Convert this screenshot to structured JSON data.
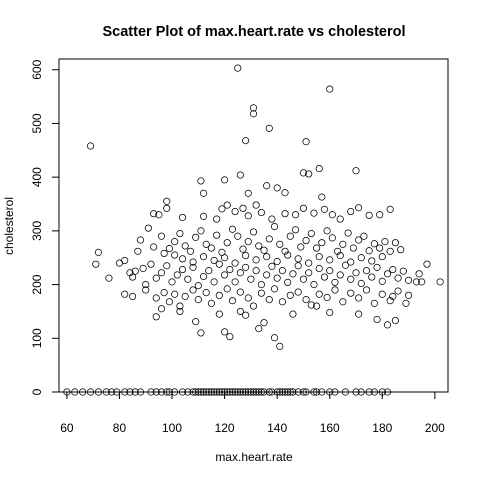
{
  "chart_data": {
    "type": "scatter",
    "title": "Scatter Plot of max.heart.rate vs cholesterol",
    "xlabel": "max.heart.rate",
    "ylabel": "cholesterol",
    "xlim": [
      57,
      205
    ],
    "ylim": [
      0,
      620
    ],
    "x_ticks": [
      60,
      80,
      100,
      120,
      140,
      160,
      180,
      200
    ],
    "y_ticks": [
      0,
      100,
      200,
      300,
      400,
      500,
      600
    ],
    "grid": false,
    "legend": "none",
    "marker": "open-circle",
    "point_color": "#000000",
    "points": [
      [
        69,
        458
      ],
      [
        125,
        603
      ],
      [
        131,
        529
      ],
      [
        131,
        518
      ],
      [
        128,
        468
      ],
      [
        137,
        491
      ],
      [
        160,
        564
      ],
      [
        151,
        466
      ],
      [
        120,
        395
      ],
      [
        111,
        393
      ],
      [
        170,
        412
      ],
      [
        126,
        404
      ],
      [
        152,
        406
      ],
      [
        150,
        408
      ],
      [
        156,
        416
      ],
      [
        129,
        370
      ],
      [
        112,
        370
      ],
      [
        136,
        384
      ],
      [
        143,
        371
      ],
      [
        157,
        363
      ],
      [
        140,
        380
      ],
      [
        98,
        355
      ],
      [
        95,
        330
      ],
      [
        93,
        332
      ],
      [
        98,
        342
      ],
      [
        104,
        325
      ],
      [
        112,
        327
      ],
      [
        117,
        322
      ],
      [
        119,
        341
      ],
      [
        121,
        348
      ],
      [
        124,
        336
      ],
      [
        127,
        342
      ],
      [
        129,
        328
      ],
      [
        132,
        348
      ],
      [
        134,
        334
      ],
      [
        138,
        322
      ],
      [
        143,
        332
      ],
      [
        147,
        330
      ],
      [
        150,
        342
      ],
      [
        154,
        333
      ],
      [
        158,
        340
      ],
      [
        161,
        330
      ],
      [
        164,
        322
      ],
      [
        168,
        336
      ],
      [
        171,
        343
      ],
      [
        175,
        329
      ],
      [
        179,
        330
      ],
      [
        183,
        340
      ],
      [
        87,
        262
      ],
      [
        88,
        283
      ],
      [
        91,
        305
      ],
      [
        93,
        270
      ],
      [
        96,
        290
      ],
      [
        97,
        258
      ],
      [
        99,
        267
      ],
      [
        101,
        280
      ],
      [
        103,
        295
      ],
      [
        105,
        272
      ],
      [
        107,
        262
      ],
      [
        109,
        288
      ],
      [
        111,
        300
      ],
      [
        113,
        275
      ],
      [
        115,
        268
      ],
      [
        117,
        292
      ],
      [
        119,
        260
      ],
      [
        121,
        278
      ],
      [
        123,
        303
      ],
      [
        125,
        290
      ],
      [
        127,
        266
      ],
      [
        129,
        280
      ],
      [
        131,
        298
      ],
      [
        133,
        272
      ],
      [
        135,
        264
      ],
      [
        137,
        285
      ],
      [
        139,
        308
      ],
      [
        141,
        275
      ],
      [
        143,
        262
      ],
      [
        145,
        290
      ],
      [
        147,
        302
      ],
      [
        149,
        270
      ],
      [
        151,
        282
      ],
      [
        153,
        295
      ],
      [
        155,
        268
      ],
      [
        157,
        278
      ],
      [
        159,
        300
      ],
      [
        161,
        287
      ],
      [
        163,
        262
      ],
      [
        165,
        275
      ],
      [
        167,
        296
      ],
      [
        169,
        268
      ],
      [
        171,
        283
      ],
      [
        173,
        290
      ],
      [
        175,
        263
      ],
      [
        177,
        276
      ],
      [
        179,
        268
      ],
      [
        181,
        280
      ],
      [
        183,
        262
      ],
      [
        185,
        278
      ],
      [
        187,
        265
      ],
      [
        101,
        255
      ],
      [
        104,
        248
      ],
      [
        108,
        242
      ],
      [
        112,
        252
      ],
      [
        116,
        245
      ],
      [
        120,
        250
      ],
      [
        124,
        240
      ],
      [
        128,
        254
      ],
      [
        132,
        246
      ],
      [
        136,
        252
      ],
      [
        140,
        243
      ],
      [
        144,
        255
      ],
      [
        148,
        248
      ],
      [
        152,
        240
      ],
      [
        156,
        252
      ],
      [
        160,
        246
      ],
      [
        164,
        254
      ],
      [
        168,
        242
      ],
      [
        172,
        250
      ],
      [
        176,
        244
      ],
      [
        180,
        252
      ],
      [
        80,
        240
      ],
      [
        82,
        245
      ],
      [
        84,
        222
      ],
      [
        85,
        214
      ],
      [
        86,
        225
      ],
      [
        89,
        230
      ],
      [
        90,
        200
      ],
      [
        92,
        238
      ],
      [
        94,
        212
      ],
      [
        96,
        222
      ],
      [
        98,
        235
      ],
      [
        100,
        205
      ],
      [
        102,
        218
      ],
      [
        104,
        228
      ],
      [
        106,
        210
      ],
      [
        108,
        232
      ],
      [
        110,
        198
      ],
      [
        112,
        215
      ],
      [
        114,
        226
      ],
      [
        116,
        205
      ],
      [
        118,
        238
      ],
      [
        120,
        218
      ],
      [
        122,
        228
      ],
      [
        124,
        205
      ],
      [
        126,
        222
      ],
      [
        128,
        232
      ],
      [
        130,
        210
      ],
      [
        132,
        226
      ],
      [
        134,
        200
      ],
      [
        136,
        218
      ],
      [
        138,
        234
      ],
      [
        140,
        212
      ],
      [
        142,
        226
      ],
      [
        144,
        204
      ],
      [
        146,
        220
      ],
      [
        148,
        235
      ],
      [
        150,
        210
      ],
      [
        152,
        222
      ],
      [
        154,
        200
      ],
      [
        156,
        230
      ],
      [
        158,
        214
      ],
      [
        160,
        226
      ],
      [
        162,
        204
      ],
      [
        164,
        218
      ],
      [
        166,
        236
      ],
      [
        168,
        210
      ],
      [
        170,
        222
      ],
      [
        172,
        202
      ],
      [
        174,
        226
      ],
      [
        176,
        214
      ],
      [
        178,
        232
      ],
      [
        180,
        206
      ],
      [
        182,
        220
      ],
      [
        184,
        228
      ],
      [
        186,
        212
      ],
      [
        188,
        225
      ],
      [
        190,
        208
      ],
      [
        194,
        220
      ],
      [
        197,
        238
      ],
      [
        71,
        238
      ],
      [
        72,
        260
      ],
      [
        76,
        212
      ],
      [
        82,
        182
      ],
      [
        85,
        178
      ],
      [
        90,
        190
      ],
      [
        94,
        175
      ],
      [
        97,
        185
      ],
      [
        99,
        168
      ],
      [
        101,
        182
      ],
      [
        103,
        160
      ],
      [
        105,
        178
      ],
      [
        108,
        190
      ],
      [
        110,
        172
      ],
      [
        113,
        185
      ],
      [
        115,
        165
      ],
      [
        118,
        180
      ],
      [
        121,
        192
      ],
      [
        123,
        170
      ],
      [
        126,
        186
      ],
      [
        129,
        175
      ],
      [
        131,
        160
      ],
      [
        134,
        184
      ],
      [
        137,
        172
      ],
      [
        139,
        192
      ],
      [
        142,
        168
      ],
      [
        145,
        180
      ],
      [
        148,
        186
      ],
      [
        151,
        172
      ],
      [
        153,
        162
      ],
      [
        156,
        182
      ],
      [
        159,
        176
      ],
      [
        162,
        190
      ],
      [
        165,
        168
      ],
      [
        168,
        184
      ],
      [
        171,
        175
      ],
      [
        174,
        190
      ],
      [
        177,
        165
      ],
      [
        180,
        182
      ],
      [
        183,
        170
      ],
      [
        186,
        188
      ],
      [
        190,
        180
      ],
      [
        193,
        205
      ],
      [
        195,
        205
      ],
      [
        202,
        205
      ],
      [
        184,
        178
      ],
      [
        94,
        140
      ],
      [
        96,
        155
      ],
      [
        103,
        150
      ],
      [
        109,
        131
      ],
      [
        111,
        110
      ],
      [
        118,
        145
      ],
      [
        120,
        112
      ],
      [
        122,
        103
      ],
      [
        126,
        150
      ],
      [
        128,
        143
      ],
      [
        133,
        118
      ],
      [
        135,
        129
      ],
      [
        139,
        101
      ],
      [
        141,
        85
      ],
      [
        146,
        145
      ],
      [
        155,
        160
      ],
      [
        160,
        148
      ],
      [
        171,
        145
      ],
      [
        178,
        135
      ],
      [
        182,
        125
      ],
      [
        189,
        165
      ],
      [
        185,
        133
      ],
      [
        60,
        0
      ],
      [
        63,
        0
      ],
      [
        66,
        0
      ],
      [
        69,
        0
      ],
      [
        72,
        0
      ],
      [
        75,
        0
      ],
      [
        77,
        0
      ],
      [
        79,
        0
      ],
      [
        82,
        0
      ],
      [
        84,
        0
      ],
      [
        86,
        0
      ],
      [
        88,
        0
      ],
      [
        92,
        0
      ],
      [
        94,
        0
      ],
      [
        96,
        0
      ],
      [
        98,
        0
      ],
      [
        99,
        0
      ],
      [
        101,
        0
      ],
      [
        104,
        0
      ],
      [
        106,
        0
      ],
      [
        108,
        0
      ],
      [
        109,
        0
      ],
      [
        110,
        0
      ],
      [
        111,
        0
      ],
      [
        112,
        0
      ],
      [
        113,
        0
      ],
      [
        114,
        0
      ],
      [
        115,
        0
      ],
      [
        116,
        0
      ],
      [
        117,
        0
      ],
      [
        118,
        0
      ],
      [
        119,
        0
      ],
      [
        120,
        0
      ],
      [
        121,
        0
      ],
      [
        122,
        0
      ],
      [
        123,
        0
      ],
      [
        124,
        0
      ],
      [
        125,
        0
      ],
      [
        126,
        0
      ],
      [
        127,
        0
      ],
      [
        128,
        0
      ],
      [
        129,
        0
      ],
      [
        130,
        0
      ],
      [
        131,
        0
      ],
      [
        132,
        0
      ],
      [
        133,
        0
      ],
      [
        134,
        0
      ],
      [
        135,
        0
      ],
      [
        137,
        0
      ],
      [
        138,
        0
      ],
      [
        140,
        0
      ],
      [
        141,
        0
      ],
      [
        142,
        0
      ],
      [
        143,
        0
      ],
      [
        144,
        0
      ],
      [
        145,
        0
      ],
      [
        146,
        0
      ],
      [
        148,
        0
      ],
      [
        150,
        0
      ],
      [
        151,
        0
      ],
      [
        154,
        0
      ],
      [
        155,
        0
      ],
      [
        157,
        0
      ],
      [
        160,
        0
      ],
      [
        162,
        0
      ],
      [
        166,
        0
      ],
      [
        170,
        0
      ],
      [
        172,
        0
      ],
      [
        175,
        0
      ],
      [
        177,
        0
      ],
      [
        180,
        0
      ],
      [
        182,
        0
      ]
    ]
  }
}
